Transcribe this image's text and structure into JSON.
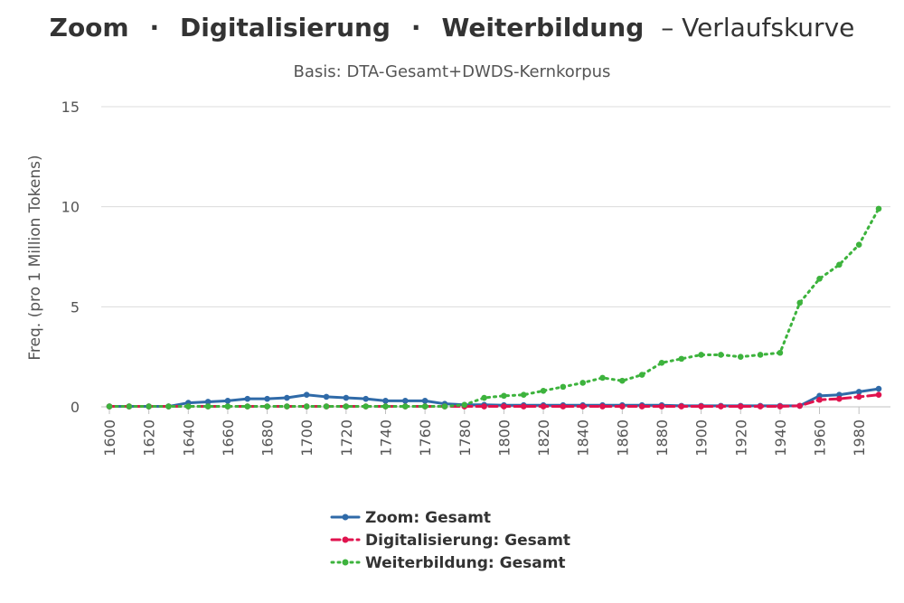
{
  "title": {
    "parts": [
      "Zoom",
      "·",
      "Digitalisierung",
      "·",
      "Weiterbildung"
    ],
    "suffix": "– Verlaufskurve"
  },
  "subtitle": "Basis: DTA-Gesamt+DWDS-Kernkorpus",
  "chart_data": {
    "type": "line",
    "x": [
      1600,
      1610,
      1620,
      1630,
      1640,
      1650,
      1660,
      1670,
      1680,
      1690,
      1700,
      1710,
      1720,
      1730,
      1740,
      1750,
      1760,
      1770,
      1780,
      1790,
      1800,
      1810,
      1820,
      1830,
      1840,
      1850,
      1860,
      1870,
      1880,
      1890,
      1900,
      1910,
      1920,
      1930,
      1940,
      1950,
      1960,
      1970,
      1980,
      1990
    ],
    "xticks": [
      1600,
      1620,
      1640,
      1660,
      1680,
      1700,
      1720,
      1740,
      1760,
      1780,
      1800,
      1820,
      1840,
      1860,
      1880,
      1900,
      1920,
      1940,
      1960,
      1980
    ],
    "ylim": [
      0,
      15
    ],
    "yticks": [
      0,
      5,
      10,
      15
    ],
    "ylabel": "Freq. (pro 1 Million Tokens)",
    "xlabel": "",
    "grid": true,
    "legend_position": "bottom",
    "series": [
      {
        "name": "Zoom: Gesamt",
        "color": "#2f6aa8",
        "dash": "solid",
        "values": [
          0.02,
          0.02,
          0.02,
          0.02,
          0.2,
          0.25,
          0.3,
          0.4,
          0.4,
          0.45,
          0.6,
          0.5,
          0.45,
          0.4,
          0.3,
          0.3,
          0.3,
          0.15,
          0.1,
          0.1,
          0.08,
          0.08,
          0.08,
          0.08,
          0.08,
          0.08,
          0.08,
          0.08,
          0.08,
          0.05,
          0.05,
          0.05,
          0.05,
          0.05,
          0.05,
          0.05,
          0.55,
          0.6,
          0.75,
          0.9
        ]
      },
      {
        "name": "Digitalisierung: Gesamt",
        "color": "#e0134e",
        "dash": "dashed",
        "values": [
          0.02,
          0.02,
          0.02,
          0.02,
          0.02,
          0.02,
          0.02,
          0.02,
          0.02,
          0.02,
          0.02,
          0.02,
          0.02,
          0.02,
          0.02,
          0.02,
          0.02,
          0.02,
          0.02,
          0.02,
          0.02,
          0.02,
          0.02,
          0.02,
          0.02,
          0.02,
          0.02,
          0.02,
          0.02,
          0.02,
          0.02,
          0.02,
          0.02,
          0.02,
          0.02,
          0.05,
          0.35,
          0.4,
          0.5,
          0.6
        ]
      },
      {
        "name": "Weiterbildung: Gesamt",
        "color": "#3db33d",
        "dash": "dotted",
        "values": [
          0.02,
          0.02,
          0.02,
          0.02,
          0.02,
          0.02,
          0.02,
          0.02,
          0.02,
          0.02,
          0.02,
          0.02,
          0.02,
          0.02,
          0.02,
          0.02,
          0.02,
          0.02,
          0.1,
          0.45,
          0.55,
          0.6,
          0.8,
          1.0,
          1.2,
          1.45,
          1.3,
          1.6,
          2.2,
          2.4,
          2.6,
          2.6,
          2.5,
          2.6,
          2.7,
          5.2,
          6.4,
          7.1,
          8.1,
          9.9
        ]
      }
    ]
  }
}
